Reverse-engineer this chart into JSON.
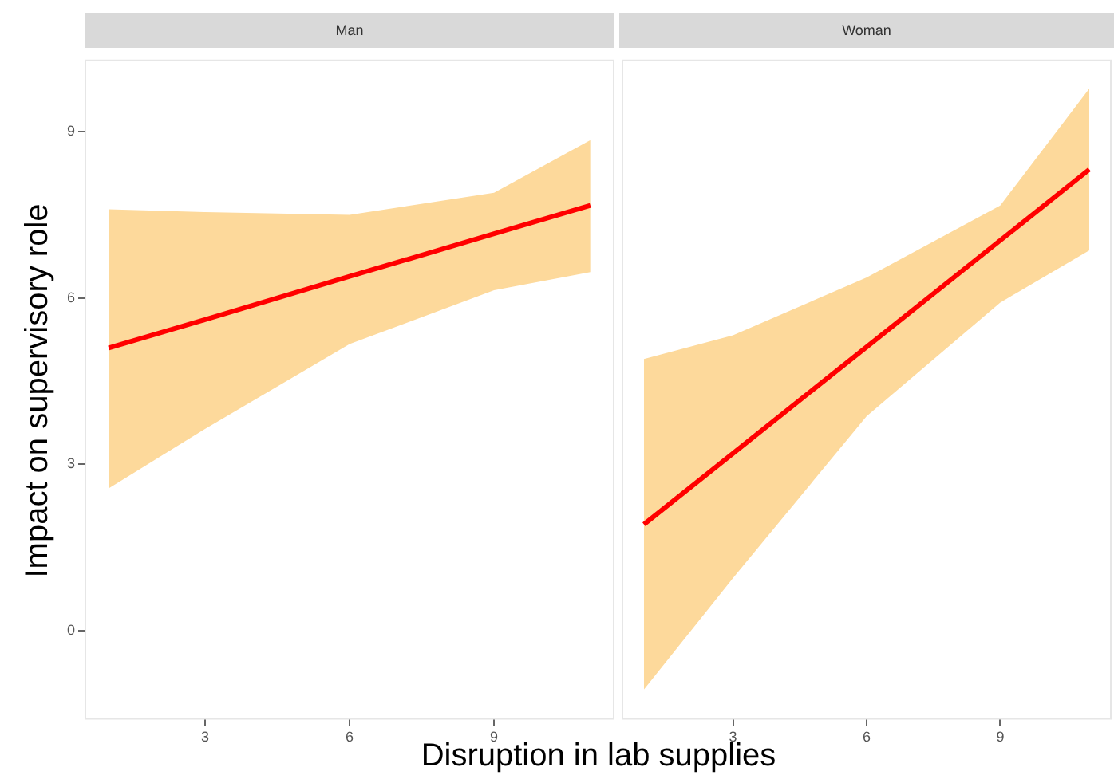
{
  "chart_data": [
    {
      "type": "line",
      "title": "Man",
      "ylabel": "Impact on supervisory role",
      "xlabel": "Disruption in lab supplies",
      "xlim": [
        0.5,
        11.5
      ],
      "xticks": [
        3,
        6,
        9
      ],
      "ylim": [
        -1.6,
        10.3
      ],
      "yticks": [
        0,
        3,
        6,
        9
      ],
      "grid": false,
      "legend": false,
      "marker": "none",
      "series": [
        {
          "type": "line",
          "color": "#ff0000",
          "x": [
            1,
            3,
            6,
            9,
            11
          ],
          "values": [
            5.1,
            5.61,
            6.39,
            7.16,
            7.67
          ],
          "lower": [
            2.57,
            3.64,
            5.17,
            6.14,
            6.47
          ],
          "upper": [
            7.6,
            7.55,
            7.5,
            7.9,
            8.85
          ]
        }
      ]
    },
    {
      "type": "line",
      "title": "Woman",
      "xlim": [
        0.5,
        11.5
      ],
      "xticks": [
        3,
        6,
        9
      ],
      "ylim": [
        -1.6,
        10.3
      ],
      "yticks": [
        0,
        3,
        6,
        9
      ],
      "tick_labels": "x",
      "grid": false,
      "legend": false,
      "marker": "none",
      "series": [
        {
          "type": "line",
          "color": "#ff0000",
          "x": [
            1,
            3,
            6,
            9,
            11
          ],
          "values": [
            1.92,
            3.2,
            5.12,
            7.04,
            8.32
          ],
          "lower": [
            -1.06,
            0.95,
            3.87,
            5.92,
            6.86
          ],
          "upper": [
            4.9,
            5.33,
            6.37,
            7.67,
            9.78
          ]
        }
      ]
    }
  ]
}
